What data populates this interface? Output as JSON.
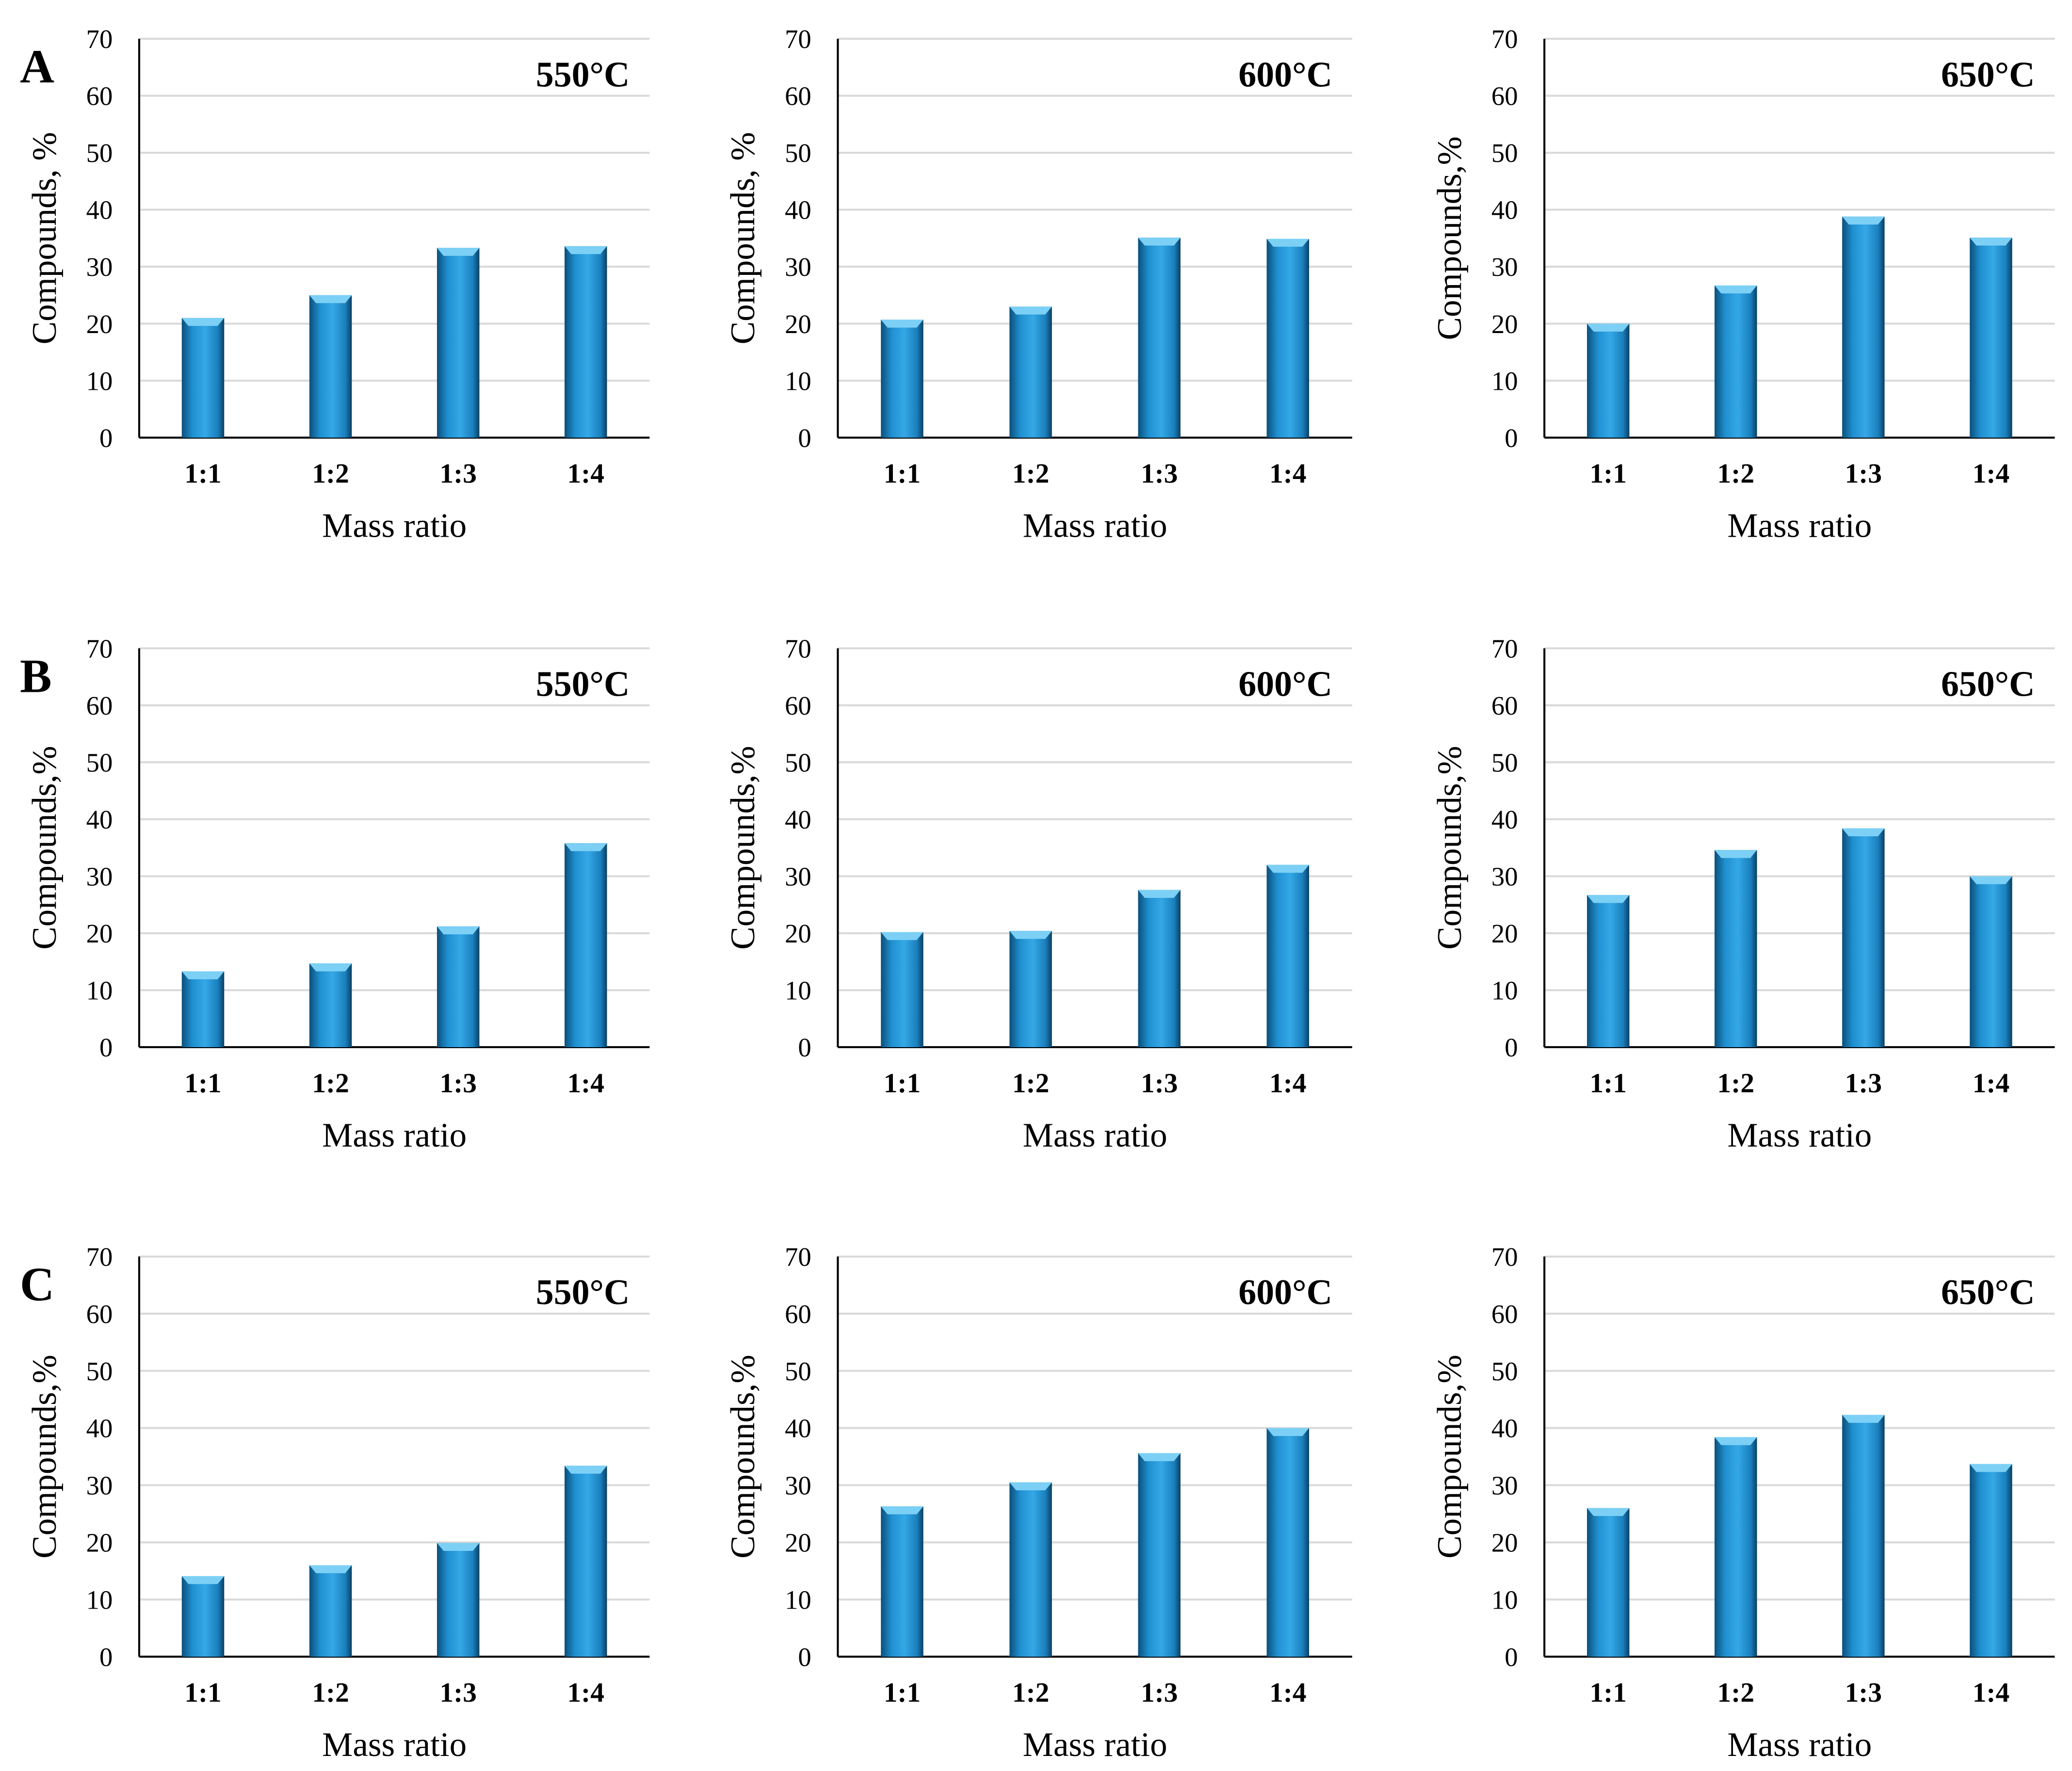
{
  "chart_data": [
    {
      "type": "bar",
      "row_label": "A",
      "title": "550°C",
      "xlabel": "Mass ratio",
      "ylabel": "Compounds, %",
      "categories": [
        "1:1",
        "1:2",
        "1:3",
        "1:4"
      ],
      "values": [
        21,
        25,
        33.3,
        33.6
      ],
      "ylim": [
        0,
        70
      ],
      "yticks": [
        0,
        10,
        20,
        30,
        40,
        50,
        60,
        70
      ],
      "grid": true
    },
    {
      "type": "bar",
      "row_label": "",
      "title": "600°C",
      "xlabel": "Mass ratio",
      "ylabel": "Compounds, %",
      "categories": [
        "1:1",
        "1:2",
        "1:3",
        "1:4"
      ],
      "values": [
        20.7,
        23,
        35.1,
        34.9
      ],
      "ylim": [
        0,
        70
      ],
      "yticks": [
        0,
        10,
        20,
        30,
        40,
        50,
        60,
        70
      ],
      "grid": true
    },
    {
      "type": "bar",
      "row_label": "",
      "title": "650°C",
      "xlabel": "Mass ratio",
      "ylabel": "Compounds,%",
      "categories": [
        "1:1",
        "1:2",
        "1:3",
        "1:4"
      ],
      "values": [
        20,
        26.7,
        38.8,
        35.1
      ],
      "ylim": [
        0,
        70
      ],
      "yticks": [
        0,
        10,
        20,
        30,
        40,
        50,
        60,
        70
      ],
      "grid": true
    },
    {
      "type": "bar",
      "row_label": "B",
      "title": "550°C",
      "xlabel": "Mass ratio",
      "ylabel": "Compounds,%",
      "categories": [
        "1:1",
        "1:2",
        "1:3",
        "1:4"
      ],
      "values": [
        13.3,
        14.7,
        21.2,
        35.8
      ],
      "ylim": [
        0,
        70
      ],
      "yticks": [
        0,
        10,
        20,
        30,
        40,
        50,
        60,
        70
      ],
      "grid": true
    },
    {
      "type": "bar",
      "row_label": "",
      "title": "600°C",
      "xlabel": "Mass ratio",
      "ylabel": "Compounds,%",
      "categories": [
        "1:1",
        "1:2",
        "1:3",
        "1:4"
      ],
      "values": [
        20.2,
        20.4,
        27.6,
        32
      ],
      "ylim": [
        0,
        70
      ],
      "yticks": [
        0,
        10,
        20,
        30,
        40,
        50,
        60,
        70
      ],
      "grid": true
    },
    {
      "type": "bar",
      "row_label": "",
      "title": "650°C",
      "xlabel": "Mass ratio",
      "ylabel": "Compounds,%",
      "categories": [
        "1:1",
        "1:2",
        "1:3",
        "1:4"
      ],
      "values": [
        26.7,
        34.6,
        38.4,
        30
      ],
      "ylim": [
        0,
        70
      ],
      "yticks": [
        0,
        10,
        20,
        30,
        40,
        50,
        60,
        70
      ],
      "grid": true
    },
    {
      "type": "bar",
      "row_label": "C",
      "title": "550°C",
      "xlabel": "Mass ratio",
      "ylabel": "Compounds,%",
      "categories": [
        "1:1",
        "1:2",
        "1:3",
        "1:4"
      ],
      "values": [
        14.1,
        16,
        19.9,
        33.4
      ],
      "ylim": [
        0,
        70
      ],
      "yticks": [
        0,
        10,
        20,
        30,
        40,
        50,
        60,
        70
      ],
      "grid": true
    },
    {
      "type": "bar",
      "row_label": "",
      "title": "600°C",
      "xlabel": "Mass ratio",
      "ylabel": "Compounds,%",
      "categories": [
        "1:1",
        "1:2",
        "1:3",
        "1:4"
      ],
      "values": [
        26.3,
        30.5,
        35.6,
        40
      ],
      "ylim": [
        0,
        70
      ],
      "yticks": [
        0,
        10,
        20,
        30,
        40,
        50,
        60,
        70
      ],
      "grid": true
    },
    {
      "type": "bar",
      "row_label": "",
      "title": "650°C",
      "xlabel": "Mass ratio",
      "ylabel": "Compounds,%",
      "categories": [
        "1:1",
        "1:2",
        "1:3",
        "1:4"
      ],
      "values": [
        26,
        38.4,
        42.3,
        33.7
      ],
      "ylim": [
        0,
        70
      ],
      "yticks": [
        0,
        10,
        20,
        30,
        40,
        50,
        60,
        70
      ],
      "grid": true
    }
  ],
  "colors": {
    "bar": "#1f8fd0",
    "bar_dark": "#0b4f7a",
    "grid": "#d9d9d9",
    "axis": "#000000"
  }
}
